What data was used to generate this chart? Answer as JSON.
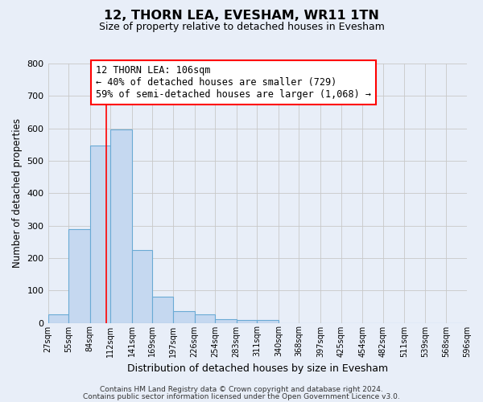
{
  "title": "12, THORN LEA, EVESHAM, WR11 1TN",
  "subtitle": "Size of property relative to detached houses in Evesham",
  "xlabel": "Distribution of detached houses by size in Evesham",
  "ylabel": "Number of detached properties",
  "bar_color": "#c5d8f0",
  "bar_edge_color": "#6aaad4",
  "background_color": "#e8eef8",
  "grid_color": "#c8c8c8",
  "vline_x": 106,
  "vline_color": "red",
  "bin_edges": [
    27,
    55,
    84,
    112,
    141,
    169,
    197,
    226,
    254,
    283,
    311,
    340,
    368,
    397,
    425,
    454,
    482,
    511,
    539,
    568,
    596
  ],
  "bar_heights": [
    27,
    290,
    546,
    597,
    224,
    80,
    37,
    26,
    12,
    9,
    8,
    0,
    0,
    0,
    0,
    0,
    0,
    0,
    0,
    0
  ],
  "ylim": [
    0,
    800
  ],
  "yticks": [
    0,
    100,
    200,
    300,
    400,
    500,
    600,
    700,
    800
  ],
  "xtick_labels": [
    "27sqm",
    "55sqm",
    "84sqm",
    "112sqm",
    "141sqm",
    "169sqm",
    "197sqm",
    "226sqm",
    "254sqm",
    "283sqm",
    "311sqm",
    "340sqm",
    "368sqm",
    "397sqm",
    "425sqm",
    "454sqm",
    "482sqm",
    "511sqm",
    "539sqm",
    "568sqm",
    "596sqm"
  ],
  "annotation_title": "12 THORN LEA: 106sqm",
  "annotation_line1": "← 40% of detached houses are smaller (729)",
  "annotation_line2": "59% of semi-detached houses are larger (1,068) →",
  "annotation_box_color": "white",
  "annotation_box_edge": "red",
  "footer1": "Contains HM Land Registry data © Crown copyright and database right 2024.",
  "footer2": "Contains public sector information licensed under the Open Government Licence v3.0."
}
